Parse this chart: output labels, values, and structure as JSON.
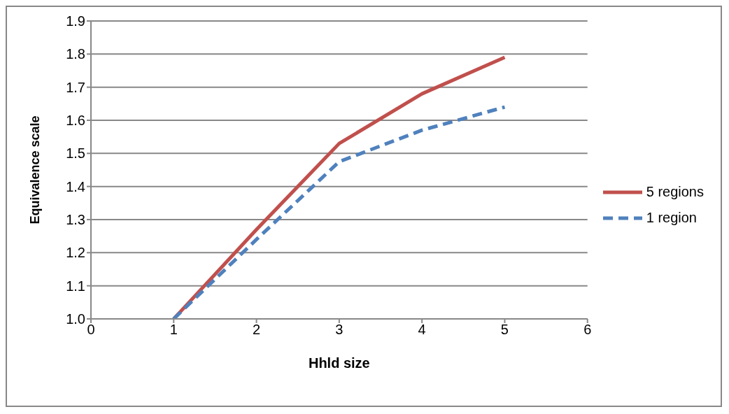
{
  "chart_data": {
    "type": "line",
    "xlabel": "Hhld size",
    "ylabel": "Equivalence scale",
    "x": [
      1,
      2,
      3,
      4,
      5
    ],
    "series": [
      {
        "name": "5 regions",
        "color": "#c0504d",
        "values": [
          1.0,
          1.27,
          1.53,
          1.68,
          1.79
        ],
        "line_style": "solid"
      },
      {
        "name": "1 region",
        "color": "#4f81bd",
        "values": [
          1.0,
          1.24,
          1.475,
          1.57,
          1.64
        ],
        "line_style": "dashed"
      }
    ],
    "xlim": [
      0,
      6
    ],
    "xticks": [
      0,
      1,
      2,
      3,
      4,
      5,
      6
    ],
    "ylim": [
      1.0,
      1.9
    ],
    "yticks": [
      {
        "value": 1.0,
        "label": "1.0"
      },
      1.1,
      1.2,
      1.3,
      1.4,
      1.5,
      1.6,
      1.7,
      1.8,
      1.9
    ],
    "grid": "y",
    "legend": "right",
    "marker": "none"
  }
}
